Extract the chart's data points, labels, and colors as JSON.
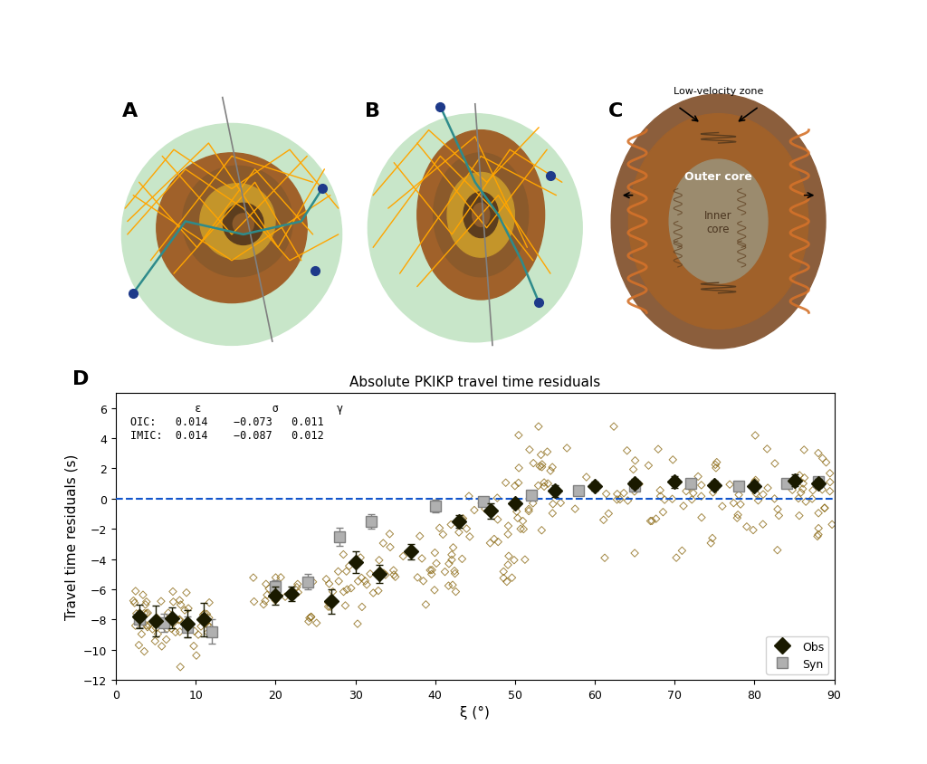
{
  "title_D": "Absolute PKIKP travel time residuals",
  "xlabel_D": "ξ (°)",
  "ylabel_D": "Travel time residuals (s)",
  "xlim_D": [
    0,
    90
  ],
  "ylim_D": [
    -12,
    7
  ],
  "yticks_D": [
    -12,
    -10,
    -8,
    -6,
    -4,
    -2,
    0,
    2,
    4,
    6
  ],
  "xticks_D": [
    0,
    10,
    20,
    30,
    40,
    50,
    60,
    70,
    80,
    90
  ],
  "dashed_line_y": 0,
  "dashed_line_color": "#1155CC",
  "scatter_color": "#8B6914",
  "obs_color": "#1a1a00",
  "syn_color": "#b0b0b0",
  "panel_label_fontsize": 16,
  "axis_fontsize": 11,
  "title_fontsize": 11,
  "annotation_text": [
    "          ε           σ         γ",
    "OIC:   0.014    −0.073   0.011",
    "IMIC:  0.014    −0.087   0.012"
  ],
  "bg_color": "#ffffff",
  "outer_core_color": "#A0522D",
  "inner_core_color": "#8B7355",
  "innermost_core_color": "#9B8B6E",
  "green_bg": "#C8E6C9",
  "orange_line": "#FFA500",
  "teal_line": "#008B8B",
  "blue_dot": "#1E3A8A"
}
